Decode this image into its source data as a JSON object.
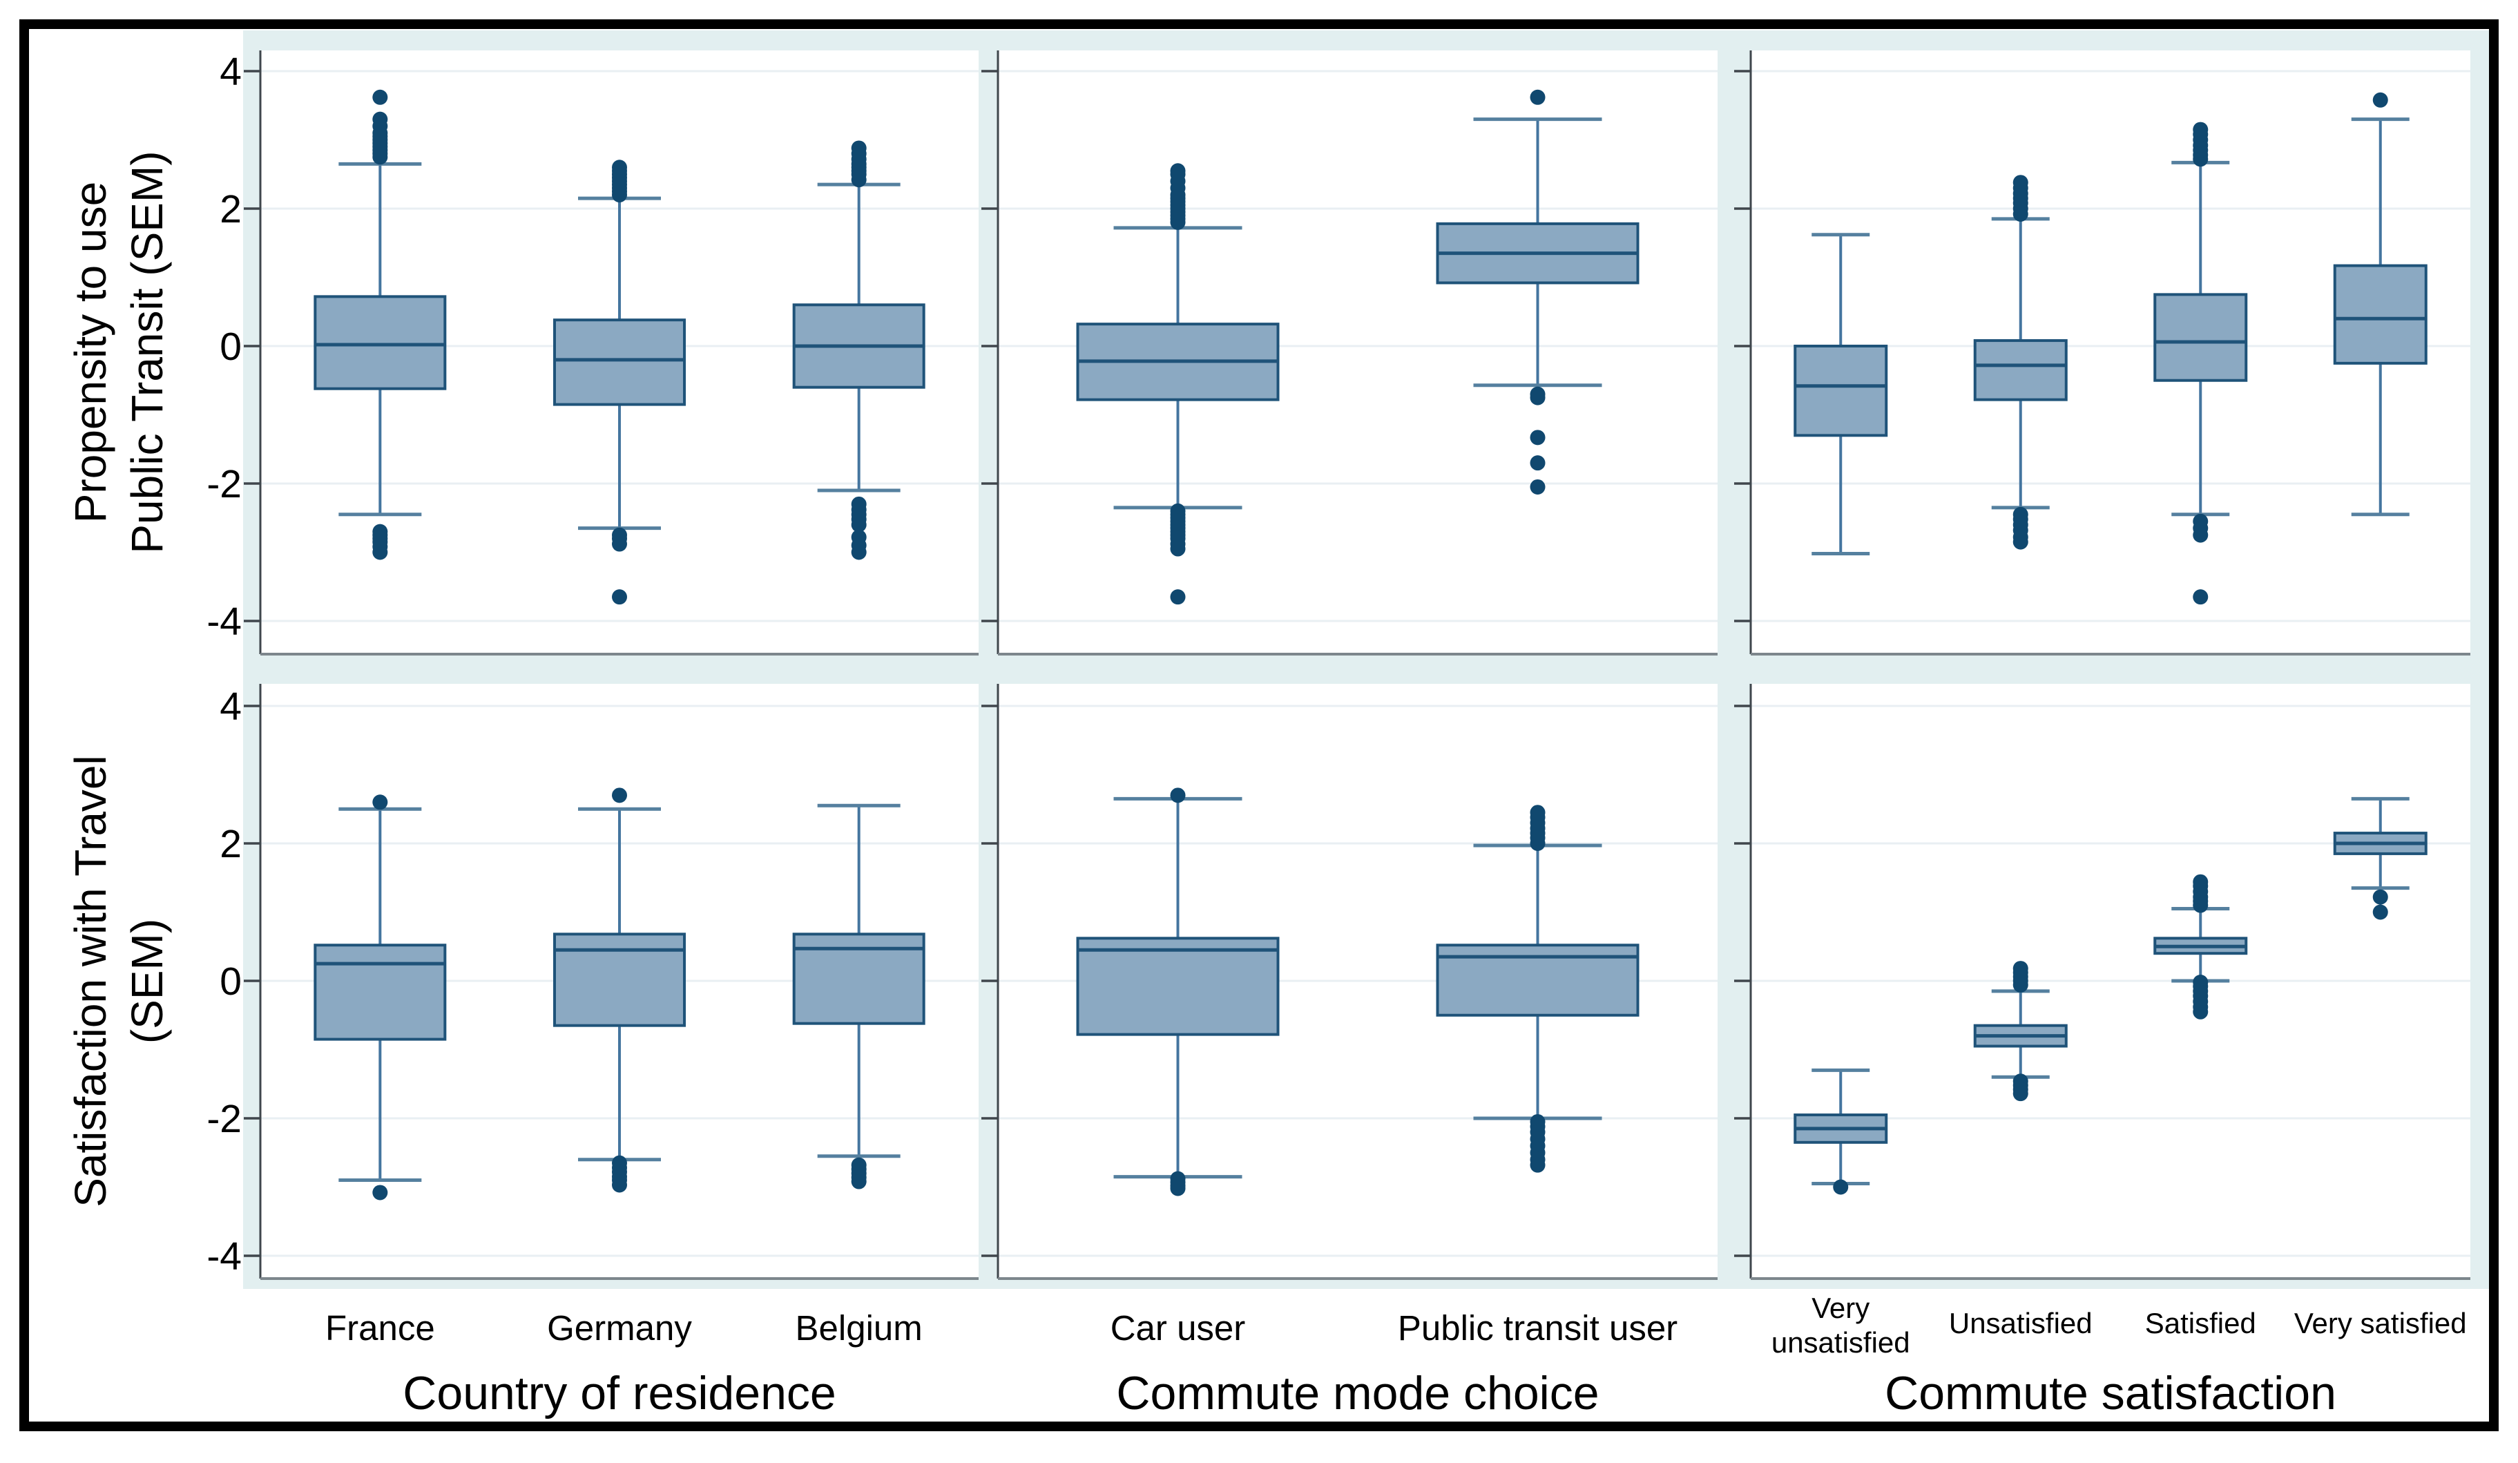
{
  "chart_data": {
    "type": "boxplot",
    "title": "",
    "grid": true,
    "ylim": [
      -4.3,
      4.35
    ],
    "yticks": [
      4,
      2,
      0,
      -2,
      -4
    ],
    "colors": {
      "figure_bg": "#ffffff",
      "plot_region_bg": "#e2eff0",
      "panel_bg": "#ffffff",
      "gridline": "#e9eff3",
      "axis_line": "#3f464c",
      "bottom_axis_line": "#7d868c",
      "box_fill": "#8ba9c2",
      "box_border": "#1f5379",
      "median": "#1f5379",
      "whisker": "#44759f",
      "whisker_cap": "#55809f",
      "outlier_dot": "#10486f",
      "text": "#000000"
    },
    "rows": [
      {
        "key": "propensity",
        "ylabel_lines": [
          "Propensity to use",
          "Public Transit (SEM)"
        ]
      },
      {
        "key": "satisfaction",
        "ylabel_lines": [
          "Satisfaction with Travel",
          "(SEM)"
        ]
      }
    ],
    "cols": [
      {
        "key": "country",
        "xlabel": "Country of residence",
        "categories": [
          "France",
          "Germany",
          "Belgium"
        ]
      },
      {
        "key": "mode",
        "xlabel": "Commute mode choice",
        "categories": [
          "Car user",
          "Public transit user"
        ]
      },
      {
        "key": "commute-satisfaction",
        "xlabel": "Commute satisfaction",
        "categories": [
          "Very unsatisfied",
          "Unsatisfied",
          "Satisfied",
          "Very satisfied"
        ],
        "category_lines": {
          "Very unsatisfied": [
            "Very",
            "unsatisfied"
          ]
        }
      }
    ],
    "panels": [
      {
        "row": 0,
        "col": 0,
        "boxes": [
          {
            "category": "France",
            "stats": {
              "whisker_low": -2.45,
              "q1": -0.62,
              "median": 0.02,
              "q3": 0.72,
              "whisker_high": 2.65
            },
            "outliers_high": [
              2.75,
              2.8,
              2.85,
              2.9,
              2.95,
              3.0,
              3.05,
              3.1,
              3.2,
              3.3,
              3.62
            ],
            "outliers_low": [
              -2.7,
              -2.75,
              -2.8,
              -2.85,
              -2.92,
              -3.0
            ]
          },
          {
            "category": "Germany",
            "stats": {
              "whisker_low": -2.65,
              "q1": -0.85,
              "median": -0.2,
              "q3": 0.38,
              "whisker_high": 2.15
            },
            "outliers_high": [
              2.2,
              2.25,
              2.3,
              2.35,
              2.4,
              2.45,
              2.5,
              2.55,
              2.6
            ],
            "outliers_low": [
              -2.75,
              -2.8,
              -2.88,
              -3.65
            ]
          },
          {
            "category": "Belgium",
            "stats": {
              "whisker_low": -2.1,
              "q1": -0.6,
              "median": 0.0,
              "q3": 0.6,
              "whisker_high": 2.35
            },
            "outliers_high": [
              2.42,
              2.5,
              2.55,
              2.6,
              2.65,
              2.72,
              2.8,
              2.88
            ],
            "outliers_low": [
              -2.3,
              -2.38,
              -2.45,
              -2.52,
              -2.6,
              -2.78,
              -2.9,
              -3.0
            ]
          }
        ]
      },
      {
        "row": 0,
        "col": 1,
        "boxes": [
          {
            "category": "Car user",
            "stats": {
              "whisker_low": -2.35,
              "q1": -0.78,
              "median": -0.22,
              "q3": 0.32,
              "whisker_high": 1.72
            },
            "outliers_high": [
              1.8,
              1.85,
              1.9,
              1.95,
              2.0,
              2.05,
              2.1,
              2.15,
              2.2,
              2.3,
              2.4,
              2.5,
              2.55
            ],
            "outliers_low": [
              -2.4,
              -2.45,
              -2.5,
              -2.55,
              -2.6,
              -2.65,
              -2.7,
              -2.75,
              -2.8,
              -2.88,
              -2.95,
              -3.65
            ]
          },
          {
            "category": "Public transit user",
            "stats": {
              "whisker_low": -0.57,
              "q1": 0.92,
              "median": 1.35,
              "q3": 1.78,
              "whisker_high": 3.3
            },
            "outliers_high": [
              3.62
            ],
            "outliers_low": [
              -0.7,
              -0.75,
              -1.33,
              -1.7,
              -2.05
            ]
          }
        ]
      },
      {
        "row": 0,
        "col": 2,
        "boxes": [
          {
            "category": "Very unsatisfied",
            "stats": {
              "whisker_low": -3.02,
              "q1": -1.3,
              "median": -0.58,
              "q3": 0.0,
              "whisker_high": 1.62
            },
            "outliers_high": [],
            "outliers_low": []
          },
          {
            "category": "Unsatisfied",
            "stats": {
              "whisker_low": -2.35,
              "q1": -0.78,
              "median": -0.28,
              "q3": 0.08,
              "whisker_high": 1.85
            },
            "outliers_high": [
              1.92,
              2.0,
              2.08,
              2.15,
              2.22,
              2.3,
              2.38
            ],
            "outliers_low": [
              -2.45,
              -2.52,
              -2.6,
              -2.68,
              -2.78,
              -2.85
            ]
          },
          {
            "category": "Satisfied",
            "stats": {
              "whisker_low": -2.45,
              "q1": -0.5,
              "median": 0.06,
              "q3": 0.75,
              "whisker_high": 2.67
            },
            "outliers_high": [
              2.72,
              2.78,
              2.85,
              2.92,
              3.0,
              3.08,
              3.15
            ],
            "outliers_low": [
              -2.55,
              -2.65,
              -2.75,
              -3.65
            ]
          },
          {
            "category": "Very satisfied",
            "stats": {
              "whisker_low": -2.45,
              "q1": -0.25,
              "median": 0.4,
              "q3": 1.17,
              "whisker_high": 3.3
            },
            "outliers_high": [
              3.58
            ],
            "outliers_low": []
          }
        ]
      },
      {
        "row": 1,
        "col": 0,
        "boxes": [
          {
            "category": "France",
            "stats": {
              "whisker_low": -2.9,
              "q1": -0.85,
              "median": 0.25,
              "q3": 0.52,
              "whisker_high": 2.5
            },
            "outliers_high": [
              2.6
            ],
            "outliers_low": [
              -3.08
            ]
          },
          {
            "category": "Germany",
            "stats": {
              "whisker_low": -2.6,
              "q1": -0.65,
              "median": 0.45,
              "q3": 0.68,
              "whisker_high": 2.5
            },
            "outliers_high": [
              2.7
            ],
            "outliers_low": [
              -2.65,
              -2.72,
              -2.78,
              -2.85,
              -2.9,
              -2.97
            ]
          },
          {
            "category": "Belgium",
            "stats": {
              "whisker_low": -2.55,
              "q1": -0.62,
              "median": 0.47,
              "q3": 0.68,
              "whisker_high": 2.55
            },
            "outliers_high": [],
            "outliers_low": [
              -2.68,
              -2.74,
              -2.8,
              -2.86,
              -2.92
            ]
          }
        ]
      },
      {
        "row": 1,
        "col": 1,
        "boxes": [
          {
            "category": "Car user",
            "stats": {
              "whisker_low": -2.85,
              "q1": -0.78,
              "median": 0.45,
              "q3": 0.62,
              "whisker_high": 2.65
            },
            "outliers_high": [
              2.7
            ],
            "outliers_low": [
              -2.88,
              -2.93,
              -2.98,
              -3.02
            ]
          },
          {
            "category": "Public transit user",
            "stats": {
              "whisker_low": -2.0,
              "q1": -0.5,
              "median": 0.35,
              "q3": 0.52,
              "whisker_high": 1.97
            },
            "outliers_high": [
              2.0,
              2.08,
              2.15,
              2.22,
              2.3,
              2.38,
              2.45
            ],
            "outliers_low": [
              -2.05,
              -2.12,
              -2.2,
              -2.3,
              -2.4,
              -2.5,
              -2.6,
              -2.68
            ]
          }
        ]
      },
      {
        "row": 1,
        "col": 2,
        "boxes": [
          {
            "category": "Very unsatisfied",
            "stats": {
              "whisker_low": -2.95,
              "q1": -2.35,
              "median": -2.15,
              "q3": -1.95,
              "whisker_high": -1.3
            },
            "outliers_high": [],
            "outliers_low": [
              -3.0
            ]
          },
          {
            "category": "Unsatisfied",
            "stats": {
              "whisker_low": -1.4,
              "q1": -0.95,
              "median": -0.8,
              "q3": -0.65,
              "whisker_high": -0.15
            },
            "outliers_high": [
              -0.06,
              0.0,
              0.06,
              0.12,
              0.18
            ],
            "outliers_low": [
              -1.46,
              -1.52,
              -1.58,
              -1.64
            ]
          },
          {
            "category": "Satisfied",
            "stats": {
              "whisker_low": 0.0,
              "q1": 0.4,
              "median": 0.5,
              "q3": 0.62,
              "whisker_high": 1.05
            },
            "outliers_high": [
              1.1,
              1.16,
              1.22,
              1.3,
              1.38,
              1.44
            ],
            "outliers_low": [
              -0.02,
              -0.08,
              -0.15,
              -0.22,
              -0.3,
              -0.38,
              -0.45
            ]
          },
          {
            "category": "Very satisfied",
            "stats": {
              "whisker_low": 1.35,
              "q1": 1.85,
              "median": 2.0,
              "q3": 2.15,
              "whisker_high": 2.65
            },
            "outliers_high": [],
            "outliers_low": [
              1.22,
              1.0
            ]
          }
        ]
      }
    ]
  }
}
